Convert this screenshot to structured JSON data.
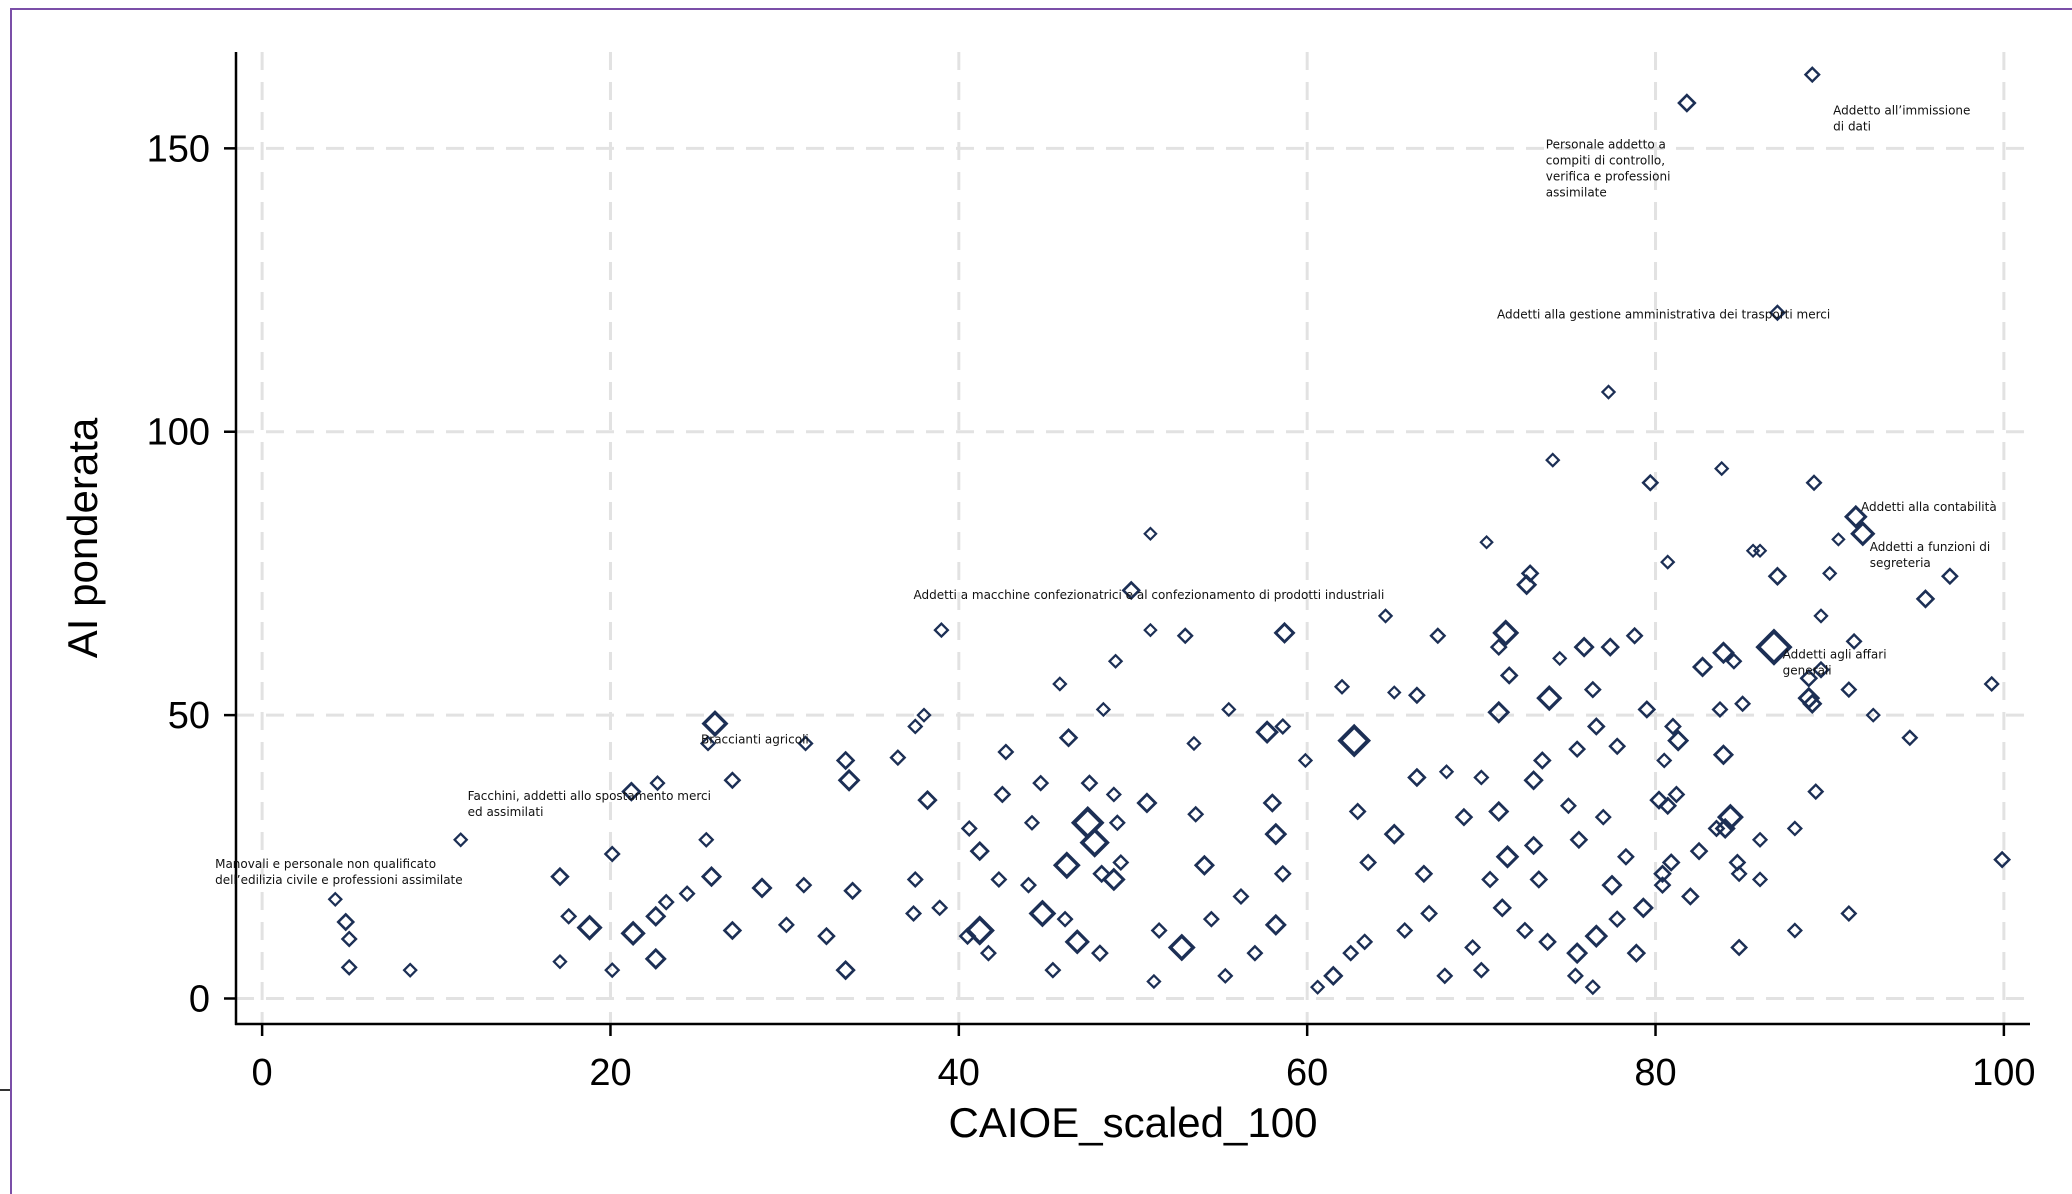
{
  "chart_data": {
    "type": "scatter",
    "title": "",
    "xlabel": "CAIOE_scaled_100",
    "ylabel": "AI ponderata",
    "xlim": [
      -1.5,
      101.5
    ],
    "ylim": [
      -4.5,
      167
    ],
    "xticks": [
      0,
      20,
      40,
      60,
      80,
      100
    ],
    "yticks": [
      0,
      50,
      100,
      150
    ],
    "grid": true,
    "legend": "none",
    "marker": "hollow-diamond",
    "marker_size_encodes": "weight",
    "colors": {
      "marker": "#1c2f55",
      "grid": "#e2e2e2",
      "axis": "#000000",
      "frame": "#7b4fa8"
    },
    "annotations": [
      {
        "label_lines": [
          "Addetto all’immissione",
          "di dati"
        ],
        "x": 90.2,
        "y": 156
      },
      {
        "label_lines": [
          "Personale addetto a",
          "compiti di controllo,",
          "verifica e professioni",
          "assimilate"
        ],
        "x": 73.7,
        "y": 150
      },
      {
        "label_lines": [
          "Addetti alla gestione amministrativa dei trasporti merci"
        ],
        "x": 70.9,
        "y": 120
      },
      {
        "label_lines": [
          "Addetti alla contabilità"
        ],
        "x": 91.8,
        "y": 86
      },
      {
        "label_lines": [
          "Addetti a funzioni di",
          "segreteria"
        ],
        "x": 92.3,
        "y": 79
      },
      {
        "label_lines": [
          "Addetti a macchine confezionatrici e al confezionamento di prodotti industriali"
        ],
        "x": 37.4,
        "y": 70.5
      },
      {
        "label_lines": [
          "Addetti agli affari",
          "generali"
        ],
        "x": 87.3,
        "y": 60
      },
      {
        "label_lines": [
          "Braccianti agricoli"
        ],
        "x": 25.2,
        "y": 45
      },
      {
        "label_lines": [
          "Facchini, addetti allo spostamento merci",
          "ed assimilati"
        ],
        "x": 11.8,
        "y": 35
      },
      {
        "label_lines": [
          "Manovali e personale non qualificato",
          "dell’edilizia civile e professioni assimilate"
        ],
        "x": -2.7,
        "y": 23
      }
    ],
    "points": [
      [
        89,
        163,
        1
      ],
      [
        81.8,
        158,
        1.3
      ],
      [
        87,
        121,
        1
      ],
      [
        77.3,
        107,
        0.8
      ],
      [
        74.1,
        95,
        0.8
      ],
      [
        83.8,
        93.5,
        0.8
      ],
      [
        79.7,
        91,
        1.1
      ],
      [
        89.1,
        91,
        1
      ],
      [
        91.5,
        85,
        1.8
      ],
      [
        91.9,
        82,
        2
      ],
      [
        51,
        82,
        0.7
      ],
      [
        70.3,
        80.5,
        0.7
      ],
      [
        86,
        79,
        0.7
      ],
      [
        90.5,
        81,
        0.7
      ],
      [
        80.7,
        77,
        0.8
      ],
      [
        85.6,
        79,
        0.7
      ],
      [
        96.9,
        74.5,
        1.1
      ],
      [
        87,
        74.5,
        1.3
      ],
      [
        72.8,
        75,
        1.2
      ],
      [
        72.6,
        73,
        1.5
      ],
      [
        49.9,
        72,
        1.3
      ],
      [
        95.5,
        70.5,
        1.3
      ],
      [
        89.5,
        67.5,
        0.8
      ],
      [
        90,
        75,
        0.8
      ],
      [
        64.5,
        67.5,
        0.8
      ],
      [
        71.4,
        64.5,
        2.2
      ],
      [
        67.5,
        64,
        1
      ],
      [
        58.7,
        64.5,
        1.6
      ],
      [
        39,
        65,
        0.9
      ],
      [
        53,
        64,
        1
      ],
      [
        51,
        65,
        0.7
      ],
      [
        77.4,
        62,
        1.3
      ],
      [
        86.8,
        62,
        3.5
      ],
      [
        83.9,
        61,
        1.7
      ],
      [
        75.9,
        62,
        1.5
      ],
      [
        78.8,
        64,
        1.1
      ],
      [
        71,
        62,
        1.1
      ],
      [
        82.7,
        58.5,
        1.5
      ],
      [
        84.5,
        59.5,
        1
      ],
      [
        91.4,
        63,
        1
      ],
      [
        99.3,
        55.5,
        0.9
      ],
      [
        74.5,
        60,
        0.8
      ],
      [
        89.5,
        58,
        1.1
      ],
      [
        91.1,
        54.5,
        1
      ],
      [
        88.8,
        53,
        1.7
      ],
      [
        88.8,
        56.5,
        1.2
      ],
      [
        49,
        59.5,
        0.8
      ],
      [
        71.6,
        57,
        1.2
      ],
      [
        62,
        55,
        0.9
      ],
      [
        65,
        54,
        0.7
      ],
      [
        66.3,
        53.5,
        1.1
      ],
      [
        73.9,
        53,
        2.1
      ],
      [
        76.4,
        54.5,
        1.1
      ],
      [
        79.5,
        51,
        1.2
      ],
      [
        83.7,
        51,
        1
      ],
      [
        85,
        52,
        1
      ],
      [
        89,
        52,
        1.4
      ],
      [
        92.5,
        50,
        0.8
      ],
      [
        71,
        50.5,
        1.7
      ],
      [
        45.8,
        55.5,
        0.8
      ],
      [
        55.5,
        51,
        0.8
      ],
      [
        57.7,
        47,
        1.8
      ],
      [
        62.7,
        45.5,
        3
      ],
      [
        58.6,
        48,
        1
      ],
      [
        26,
        48.5,
        2.2
      ],
      [
        38,
        50,
        0.8
      ],
      [
        48.3,
        51,
        0.8
      ],
      [
        81,
        48,
        1.1
      ],
      [
        76.6,
        48,
        1.2
      ],
      [
        81.3,
        45.5,
        1.6
      ],
      [
        83.9,
        43,
        1.5
      ],
      [
        94.6,
        46,
        1
      ],
      [
        73.5,
        42,
        1.2
      ],
      [
        75.5,
        44,
        1.1
      ],
      [
        73,
        38.5,
        1.4
      ],
      [
        77.8,
        44.5,
        1.1
      ],
      [
        80.5,
        42,
        0.9
      ],
      [
        89.2,
        36.5,
        1
      ],
      [
        42.7,
        43.5,
        1
      ],
      [
        46.3,
        46,
        1.3
      ],
      [
        33.5,
        42,
        1.3
      ],
      [
        36.5,
        42.5,
        1
      ],
      [
        33.7,
        38.5,
        1.7
      ],
      [
        27,
        38.5,
        1.1
      ],
      [
        31.2,
        45,
        0.9
      ],
      [
        25.6,
        45,
        0.9
      ],
      [
        37.5,
        48,
        0.9
      ],
      [
        44.7,
        38,
        1
      ],
      [
        47.5,
        38,
        1.1
      ],
      [
        53.5,
        45,
        0.8
      ],
      [
        59.9,
        42,
        0.8
      ],
      [
        68,
        40,
        0.8
      ],
      [
        66.3,
        39,
        1.3
      ],
      [
        70,
        39,
        0.9
      ],
      [
        80.2,
        35,
        1.3
      ],
      [
        80.7,
        34,
        1.2
      ],
      [
        81.2,
        36,
        1.1
      ],
      [
        84.3,
        32,
        2.2
      ],
      [
        83.5,
        30,
        1.1
      ],
      [
        86,
        28,
        0.9
      ],
      [
        88,
        30,
        0.9
      ],
      [
        75,
        34,
        1
      ],
      [
        71,
        33,
        1.5
      ],
      [
        77,
        32,
        1
      ],
      [
        21.2,
        36.5,
        1.4
      ],
      [
        22.7,
        38,
        0.9
      ],
      [
        38.2,
        35,
        1.4
      ],
      [
        42.5,
        36,
        1.1
      ],
      [
        48.9,
        36,
        0.9
      ],
      [
        50.8,
        34.5,
        1.5
      ],
      [
        49.1,
        31,
        1
      ],
      [
        47.4,
        31,
        3
      ],
      [
        47.8,
        27.5,
        2.6
      ],
      [
        41.2,
        26,
        1.4
      ],
      [
        40.6,
        30,
        1
      ],
      [
        44.2,
        31,
        0.9
      ],
      [
        53.6,
        32.5,
        1
      ],
      [
        58,
        34.5,
        1.3
      ],
      [
        58.2,
        29,
        1.7
      ],
      [
        62.9,
        33,
        1.1
      ],
      [
        65,
        29,
        1.5
      ],
      [
        69,
        32,
        1.2
      ],
      [
        71.5,
        25,
        1.8
      ],
      [
        73,
        27,
        1.3
      ],
      [
        75.6,
        28,
        1.2
      ],
      [
        78.3,
        25,
        1.1
      ],
      [
        80.9,
        24,
        1.2
      ],
      [
        84,
        30,
        1.5
      ],
      [
        82.5,
        26,
        1.2
      ],
      [
        84.7,
        24,
        1.1
      ],
      [
        80.4,
        22,
        1.2
      ],
      [
        86,
        21,
        0.9
      ],
      [
        99.9,
        24.5,
        1.1
      ],
      [
        77.5,
        20,
        1.5
      ],
      [
        73.3,
        21,
        1.2
      ],
      [
        70.5,
        21,
        1.1
      ],
      [
        66.7,
        22,
        1.2
      ],
      [
        63.5,
        24,
        1.1
      ],
      [
        58.6,
        22,
        1.1
      ],
      [
        54.1,
        23.5,
        1.5
      ],
      [
        49.3,
        24,
        1
      ],
      [
        48.9,
        21,
        1.8
      ],
      [
        48.2,
        22,
        1.2
      ],
      [
        46.2,
        23.5,
        2.3
      ],
      [
        42.3,
        21,
        1
      ],
      [
        37.5,
        21,
        1
      ],
      [
        33.9,
        19,
        1.2
      ],
      [
        31.1,
        20,
        1
      ],
      [
        28.7,
        19.5,
        1.5
      ],
      [
        25.8,
        21.5,
        1.5
      ],
      [
        24.4,
        18.5,
        1
      ],
      [
        22.6,
        14.5,
        1.5
      ],
      [
        23.2,
        17,
        1
      ],
      [
        17.1,
        21.5,
        1.3
      ],
      [
        20.1,
        25.5,
        1
      ],
      [
        25.5,
        28,
        0.9
      ],
      [
        11.4,
        28,
        0.8
      ],
      [
        4.2,
        17.5,
        0.8
      ],
      [
        4.8,
        13.5,
        1.2
      ],
      [
        5,
        10.5,
        1
      ],
      [
        5,
        5.5,
        1
      ],
      [
        8.5,
        5,
        0.8
      ],
      [
        18.8,
        12.5,
        2.1
      ],
      [
        21.3,
        11.5,
        2
      ],
      [
        22.6,
        7,
        1.6
      ],
      [
        20.1,
        5,
        0.9
      ],
      [
        17.6,
        14.5,
        1
      ],
      [
        17.1,
        6.5,
        0.8
      ],
      [
        27,
        12,
        1.3
      ],
      [
        30.1,
        13,
        1
      ],
      [
        33.5,
        5,
        1.4
      ],
      [
        32.4,
        11,
        1.2
      ],
      [
        37.4,
        15,
        1
      ],
      [
        38.9,
        16,
        1
      ],
      [
        41.2,
        12,
        2.6
      ],
      [
        40.5,
        11,
        1.1
      ],
      [
        41.7,
        8,
        1
      ],
      [
        44.8,
        15,
        2.3
      ],
      [
        46.8,
        10,
        2
      ],
      [
        48.1,
        8,
        1.1
      ],
      [
        45.4,
        5,
        1
      ],
      [
        52.8,
        9,
        2.3
      ],
      [
        51.5,
        12,
        1
      ],
      [
        51.2,
        3,
        0.8
      ],
      [
        55.3,
        4,
        0.9
      ],
      [
        57,
        8,
        1
      ],
      [
        58.2,
        13,
        1.6
      ],
      [
        61.5,
        4,
        1.4
      ],
      [
        63.3,
        10,
        1
      ],
      [
        65.6,
        12,
        1
      ],
      [
        67,
        15,
        1.1
      ],
      [
        69.5,
        9,
        1
      ],
      [
        70,
        5,
        1
      ],
      [
        71.2,
        16,
        1.3
      ],
      [
        72.5,
        12,
        1.1
      ],
      [
        73.8,
        10,
        1.2
      ],
      [
        75.5,
        8,
        1.6
      ],
      [
        76.6,
        11,
        1.8
      ],
      [
        77.8,
        14,
        1.1
      ],
      [
        78.9,
        8,
        1.3
      ],
      [
        79.3,
        16,
        1.5
      ],
      [
        80.4,
        20,
        1.1
      ],
      [
        82,
        18,
        1.2
      ],
      [
        84.8,
        9,
        1.1
      ],
      [
        84.8,
        22,
        1
      ],
      [
        88,
        12,
        0.9
      ],
      [
        91.1,
        15,
        1
      ],
      [
        75.4,
        4,
        1
      ],
      [
        76.4,
        2,
        0.9
      ],
      [
        67.9,
        4,
        1
      ],
      [
        60.6,
        2,
        0.8
      ],
      [
        62.5,
        8,
        1
      ],
      [
        54.5,
        14,
        1
      ],
      [
        56.2,
        18,
        1
      ],
      [
        44,
        20,
        1
      ],
      [
        46.1,
        14,
        1
      ]
    ]
  }
}
